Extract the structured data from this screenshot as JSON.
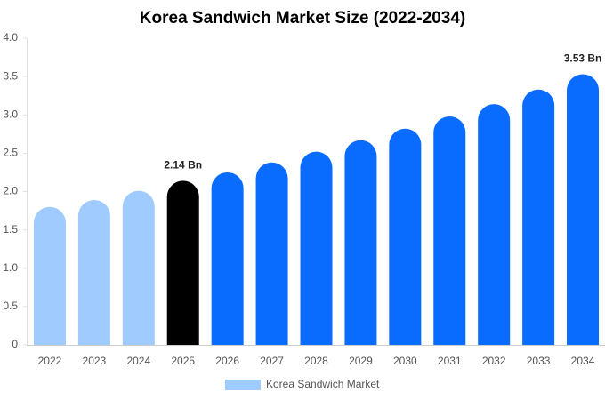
{
  "chart_data": {
    "type": "bar",
    "title": "Korea Sandwich Market Size (2022-2034)",
    "categories": [
      "2022",
      "2023",
      "2024",
      "2025",
      "2026",
      "2027",
      "2028",
      "2029",
      "2030",
      "2031",
      "2032",
      "2033",
      "2034"
    ],
    "series": [
      {
        "name": "Korea Sandwich Market",
        "color": "#9fcbff",
        "values": [
          1.8,
          1.89,
          2.01,
          2.14,
          2.25,
          2.38,
          2.52,
          2.67,
          2.82,
          2.98,
          3.14,
          3.33,
          3.53
        ],
        "value_labels": [
          null,
          null,
          null,
          "2.14 Bn",
          null,
          null,
          null,
          null,
          null,
          null,
          null,
          null,
          "3.53 Bn"
        ],
        "colors": [
          "#9fcbff",
          "#9fcbff",
          "#9fcbff",
          "#000000",
          "#0a6cff",
          "#0a6cff",
          "#0a6cff",
          "#0a6cff",
          "#0a6cff",
          "#0a6cff",
          "#0a6cff",
          "#0a6cff",
          "#0a6cff"
        ]
      }
    ],
    "ylim": [
      0,
      4.0
    ],
    "yticks": [
      0,
      0.5,
      {
        "value": 1.0,
        "label": "1.0"
      },
      1.5,
      {
        "value": 2.0,
        "label": "2.0"
      },
      2.5,
      {
        "value": 3.0,
        "label": "3.0"
      },
      3.5,
      {
        "value": 4.0,
        "label": "4.0"
      }
    ],
    "grid": false,
    "legend": "bottom"
  }
}
